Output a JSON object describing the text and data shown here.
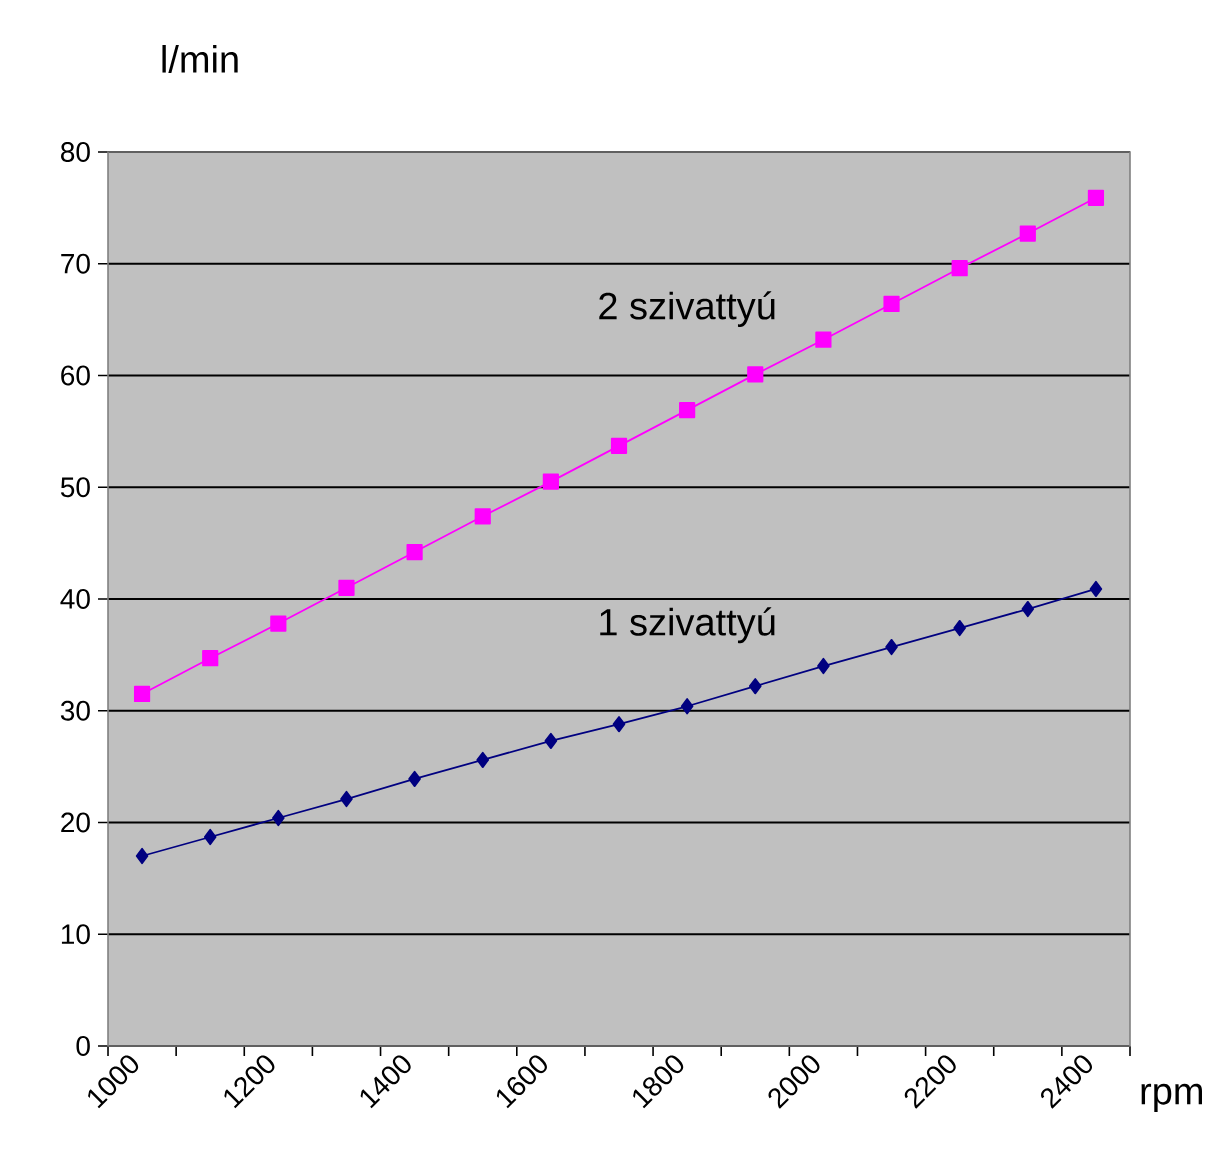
{
  "chart_data": {
    "type": "line",
    "xlabel": "rpm",
    "ylabel": "l/min",
    "x": [
      1050,
      1150,
      1250,
      1350,
      1450,
      1550,
      1650,
      1750,
      1850,
      1950,
      2050,
      2150,
      2250,
      2350,
      2450
    ],
    "series": [
      {
        "name": "2 szivattyú",
        "color": "#ff00ff",
        "marker": "square",
        "values": [
          31.5,
          34.7,
          37.8,
          41,
          44.2,
          47.4,
          50.5,
          53.7,
          56.9,
          60.1,
          63.2,
          66.4,
          69.6,
          72.7,
          75.9
        ]
      },
      {
        "name": "1 szivattyú",
        "color": "#000080",
        "marker": "diamond",
        "values": [
          17,
          18.7,
          20.4,
          22.1,
          23.9,
          25.6,
          27.3,
          28.8,
          30.4,
          32.2,
          34,
          35.7,
          37.4,
          39.1,
          40.9
        ]
      }
    ],
    "xlim": [
      1000,
      2500
    ],
    "xticks": [
      1000,
      {
        "value": 1100,
        "label": null
      },
      1200,
      {
        "value": 1300,
        "label": null
      },
      1400,
      {
        "value": 1500,
        "label": null
      },
      1600,
      {
        "value": 1700,
        "label": null
      },
      1800,
      {
        "value": 1900,
        "label": null
      },
      2000,
      {
        "value": 2100,
        "label": null
      },
      2200,
      {
        "value": 2300,
        "label": null
      },
      2400,
      {
        "value": 2500,
        "label": null
      }
    ],
    "ylim": [
      0,
      80
    ],
    "yticks": [
      0,
      10,
      20,
      30,
      40,
      50,
      60,
      70,
      80
    ],
    "grid": "y"
  }
}
